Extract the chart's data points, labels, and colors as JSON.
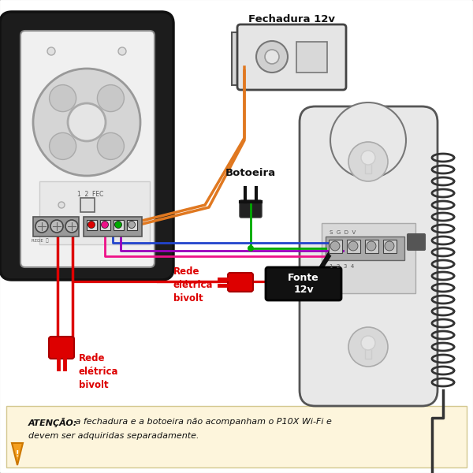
{
  "bg_color": "#ffffff",
  "border_color": "#cccccc",
  "warning_bg": "#fdf5dc",
  "warning_border": "#d4c890",
  "label_fechadura": "Fechadura 12v",
  "label_botoeira": "Botoeira",
  "label_rede1": "Rede\nelétrica\nbivolt",
  "label_rede2": "Rede\nelétrica\nbivolt",
  "label_fonte": "Fonte\n12v",
  "wire_orange": "#e07820",
  "wire_green": "#00aa00",
  "wire_pink": "#ee1188",
  "wire_blue": "#2244cc",
  "wire_purple": "#9900bb",
  "wire_black": "#111111",
  "wire_red": "#dd0000",
  "intercom_dark": "#1a1a1a",
  "intercom_light": "#f0f0f0",
  "handset_fill": "#e8e8e8"
}
